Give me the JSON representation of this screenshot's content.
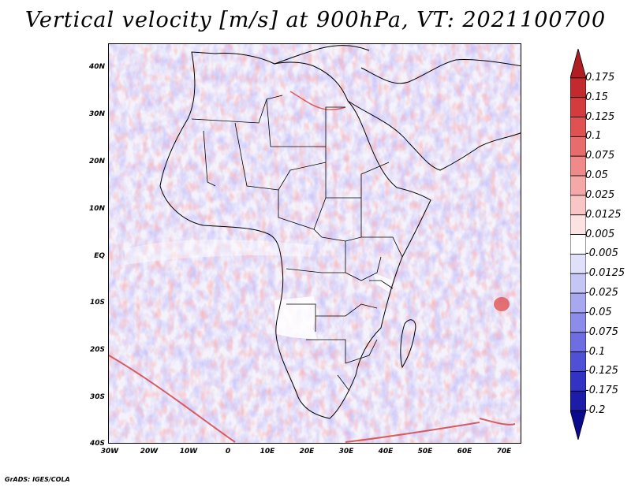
{
  "title": "Vertical velocity [m/s] at 900hPa, VT: 2021100700",
  "credit": "GrADS: IGES/COLA",
  "map": {
    "region": "Africa",
    "field": "vertical velocity",
    "level": "900hPa",
    "lat_range": [
      -40,
      45
    ],
    "lon_range": [
      -30,
      75
    ],
    "lat_ticks": [
      "40N",
      "30N",
      "20N",
      "10N",
      "EQ",
      "10S",
      "20S",
      "30S",
      "40S"
    ],
    "lon_ticks": [
      "30W",
      "20W",
      "10W",
      "0",
      "10E",
      "20E",
      "30E",
      "40E",
      "50E",
      "60E",
      "70E"
    ]
  },
  "colorbar": {
    "labels": [
      "0.175",
      "0.15",
      "0.125",
      "0.1",
      "0.075",
      "0.05",
      "0.025",
      "0.0125",
      "0.005",
      "-0.005",
      "-0.0125",
      "-0.025",
      "-0.05",
      "-0.075",
      "-0.1",
      "-0.125",
      "-0.175",
      "-0.2"
    ],
    "colors": [
      "#b01e24",
      "#c32a2e",
      "#d23c3c",
      "#e05252",
      "#e96c6c",
      "#f08a8a",
      "#f5a8a8",
      "#f9c6c6",
      "#fce2e2",
      "#ffffff",
      "#e0e0fa",
      "#c6c6f5",
      "#a8a8f0",
      "#8c8cea",
      "#6e6ee2",
      "#5050d6",
      "#3232c4",
      "#1c1ca8",
      "#0a0a8c"
    ]
  }
}
